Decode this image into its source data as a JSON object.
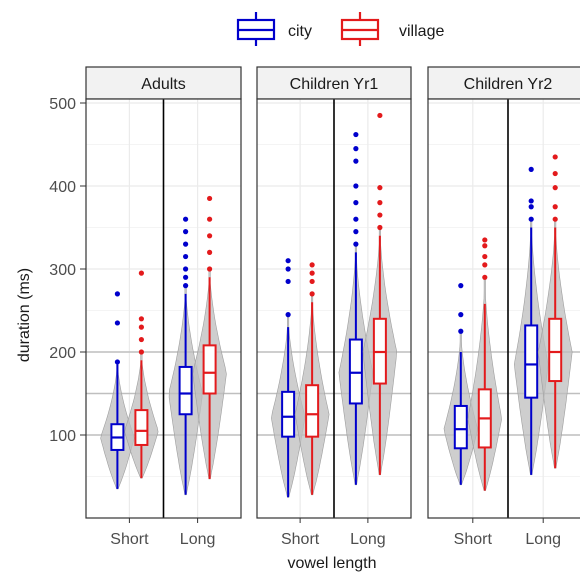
{
  "chart_data": {
    "type": "violin-box",
    "title": "",
    "xlabel": "vowel length",
    "ylabel": "duration (ms)",
    "ylim": [
      0,
      510
    ],
    "yticks": [
      100,
      200,
      300,
      400,
      500
    ],
    "grid": true,
    "reference_lines": [
      100,
      150,
      200
    ],
    "legend": {
      "placement": "top",
      "entries": [
        {
          "name": "city",
          "color": "#0000cc"
        },
        {
          "name": "village",
          "color": "#e31a1c"
        }
      ]
    },
    "panels": [
      {
        "title": "Adults",
        "categories": [
          "Short",
          "Long"
        ],
        "series": [
          {
            "name": "city",
            "groups": [
              {
                "category": "Short",
                "min": 35,
                "q1": 82,
                "median": 97,
                "q3": 113,
                "max": 185,
                "outliers": [
                  188,
                  235,
                  270
                ]
              },
              {
                "category": "Long",
                "min": 28,
                "q1": 125,
                "median": 150,
                "q3": 182,
                "max": 270,
                "outliers": [
                  280,
                  290,
                  300,
                  315,
                  330,
                  345,
                  360
                ]
              }
            ]
          },
          {
            "name": "village",
            "groups": [
              {
                "category": "Short",
                "min": 48,
                "q1": 88,
                "median": 105,
                "q3": 130,
                "max": 190,
                "outliers": [
                  200,
                  215,
                  230,
                  240,
                  295
                ]
              },
              {
                "category": "Long",
                "min": 47,
                "q1": 150,
                "median": 175,
                "q3": 208,
                "max": 290,
                "outliers": [
                  300,
                  320,
                  340,
                  360,
                  385
                ]
              }
            ]
          }
        ]
      },
      {
        "title": "Children Yr1",
        "categories": [
          "Short",
          "Long"
        ],
        "series": [
          {
            "name": "city",
            "groups": [
              {
                "category": "Short",
                "min": 25,
                "q1": 98,
                "median": 122,
                "q3": 152,
                "max": 230,
                "outliers": [
                  245,
                  285,
                  300,
                  310
                ]
              },
              {
                "category": "Long",
                "min": 40,
                "q1": 138,
                "median": 175,
                "q3": 215,
                "max": 320,
                "outliers": [
                  330,
                  345,
                  360,
                  380,
                  400,
                  430,
                  445,
                  462
                ]
              }
            ]
          },
          {
            "name": "village",
            "groups": [
              {
                "category": "Short",
                "min": 28,
                "q1": 98,
                "median": 125,
                "q3": 160,
                "max": 260,
                "outliers": [
                  270,
                  285,
                  295,
                  305
                ]
              },
              {
                "category": "Long",
                "min": 52,
                "q1": 162,
                "median": 200,
                "q3": 240,
                "max": 340,
                "outliers": [
                  350,
                  365,
                  380,
                  398,
                  485
                ]
              }
            ]
          }
        ]
      },
      {
        "title": "Children Yr2",
        "categories": [
          "Short",
          "Long"
        ],
        "series": [
          {
            "name": "city",
            "groups": [
              {
                "category": "Short",
                "min": 40,
                "q1": 84,
                "median": 107,
                "q3": 135,
                "max": 200,
                "outliers": [
                  225,
                  245,
                  280
                ]
              },
              {
                "category": "Long",
                "min": 52,
                "q1": 145,
                "median": 185,
                "q3": 232,
                "max": 350,
                "outliers": [
                  360,
                  375,
                  382,
                  420
                ]
              }
            ]
          },
          {
            "name": "village",
            "groups": [
              {
                "category": "Short",
                "min": 33,
                "q1": 85,
                "median": 120,
                "q3": 155,
                "max": 258,
                "outliers": [
                  290,
                  305,
                  315,
                  328,
                  335
                ]
              },
              {
                "category": "Long",
                "min": 60,
                "q1": 165,
                "median": 200,
                "q3": 240,
                "max": 350,
                "outliers": [
                  360,
                  375,
                  398,
                  415,
                  435
                ]
              }
            ]
          }
        ]
      }
    ]
  }
}
